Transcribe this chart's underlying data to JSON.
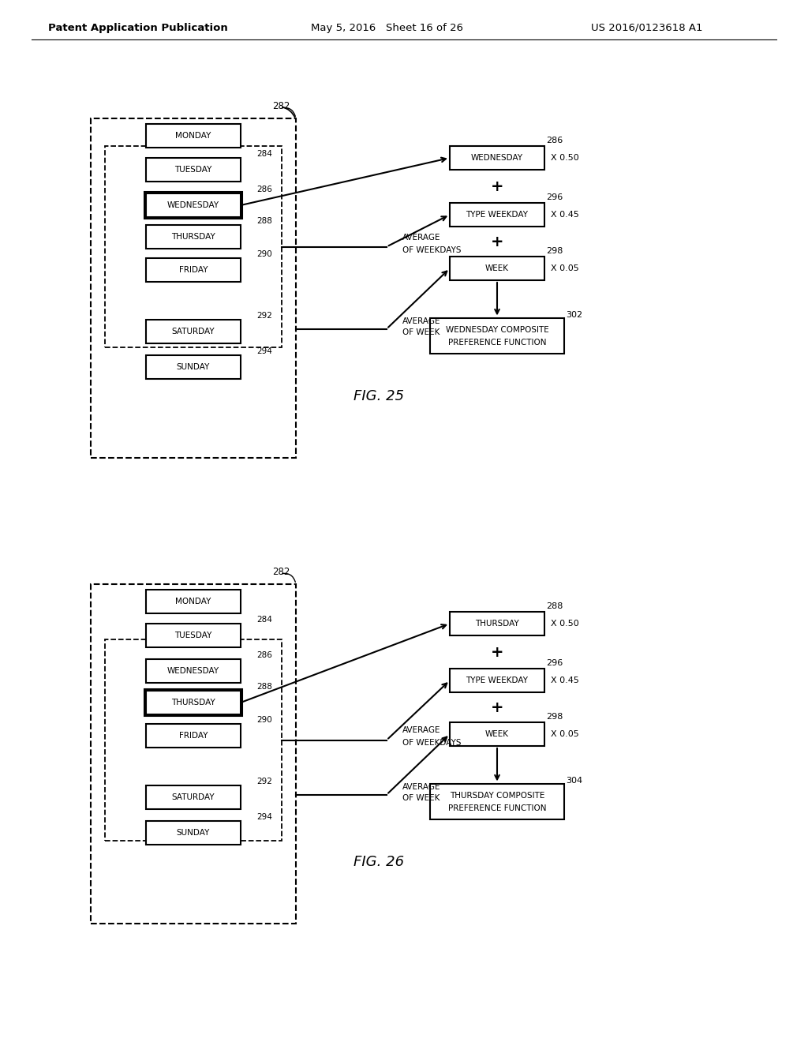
{
  "header_left": "Patent Application Publication",
  "header_mid": "May 5, 2016   Sheet 16 of 26",
  "header_right": "US 2016/0123618 A1",
  "fig25": {
    "title": "FIG. 25",
    "days": [
      "MONDAY",
      "TUESDAY",
      "WEDNESDAY",
      "THURSDAY",
      "FRIDAY",
      "SATURDAY",
      "SUNDAY"
    ],
    "highlighted_day": "WEDNESDAY",
    "highlighted_day_index": 2,
    "inner_box_days": [
      "MONDAY",
      "TUESDAY",
      "WEDNESDAY",
      "THURSDAY",
      "FRIDAY"
    ],
    "right_boxes": [
      {
        "label": "WEDNESDAY",
        "ref": "286",
        "multiplier": "X 0.50"
      },
      {
        "label": "TYPE WEEKDAY",
        "ref": "296",
        "multiplier": "X 0.45"
      },
      {
        "label": "WEEK",
        "ref": "298",
        "multiplier": "X 0.05"
      }
    ],
    "output_box": {
      "label": "WEDNESDAY COMPOSITE\nPREFERENCE FUNCTION",
      "ref": "302"
    },
    "arrow_labels": [
      {
        "text": "AVERAGE\nOF WEEKDAYS",
        "target_idx": 1
      },
      {
        "text": "AVERAGE\nOF WEEK",
        "target_idx": 2
      }
    ],
    "outer_box_ref": "282",
    "tuesday_ref": "284",
    "wednesday_ref": "286",
    "thursday_ref": "288",
    "friday_ref": "290",
    "saturday_ref": "292",
    "sunday_ref": "294"
  },
  "fig26": {
    "title": "FIG. 26",
    "days": [
      "MONDAY",
      "TUESDAY",
      "WEDNESDAY",
      "THURSDAY",
      "FRIDAY",
      "SATURDAY",
      "SUNDAY"
    ],
    "highlighted_day": "THURSDAY",
    "highlighted_day_index": 3,
    "inner_box_days": [
      "MONDAY",
      "TUESDAY",
      "WEDNESDAY",
      "THURSDAY",
      "FRIDAY"
    ],
    "right_boxes": [
      {
        "label": "THURSDAY",
        "ref": "288",
        "multiplier": "X 0.50"
      },
      {
        "label": "TYPE WEEKDAY",
        "ref": "296",
        "multiplier": "X 0.45"
      },
      {
        "label": "WEEK",
        "ref": "298",
        "multiplier": "X 0.05"
      }
    ],
    "output_box": {
      "label": "THURSDAY COMPOSITE\nPREFERENCE FUNCTION",
      "ref": "304"
    },
    "arrow_labels": [
      {
        "text": "AVERAGE\nOF WEEKDAYS",
        "target_idx": 1
      },
      {
        "text": "AVERAGE\nOF WEEK",
        "target_idx": 2
      }
    ],
    "outer_box_ref": "282",
    "tuesday_ref": "284",
    "wednesday_ref": "286",
    "thursday_ref": "288",
    "friday_ref": "290",
    "saturday_ref": "292",
    "sunday_ref": "294"
  },
  "bg_color": "#ffffff",
  "box_color": "#000000",
  "text_color": "#000000",
  "font_size": 8,
  "header_font_size": 9
}
